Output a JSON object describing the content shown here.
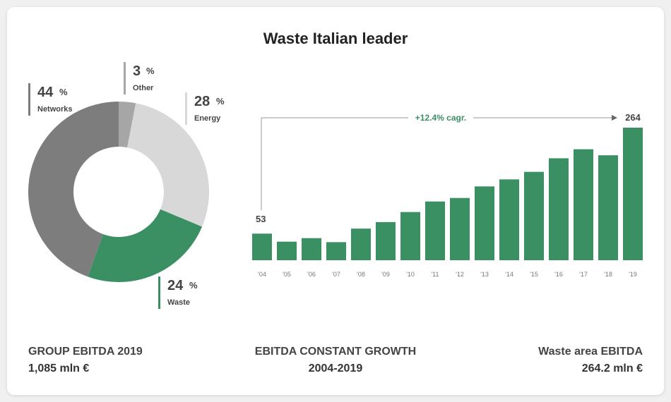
{
  "title": "Waste Italian leader",
  "colors": {
    "waste": "#3a8f63",
    "networks": "#7c7d7c",
    "other": "#a6a6a6",
    "energy": "#d8d8d8",
    "axis_line": "#9a9a9a"
  },
  "chart_data": [
    {
      "type": "pie",
      "variant": "donut",
      "unit": "%",
      "slices": [
        {
          "name": "Other",
          "value": 3
        },
        {
          "name": "Energy",
          "value": 28
        },
        {
          "name": "Waste",
          "value": 24
        },
        {
          "name": "Networks",
          "value": 44
        }
      ]
    },
    {
      "type": "bar",
      "categories": [
        "'04",
        "'05",
        "'06",
        "'07",
        "'08",
        "'09",
        "'10",
        "'11",
        "'12",
        "'13",
        "'14",
        "'15",
        "'16",
        "'17",
        "'18",
        "'19"
      ],
      "values": [
        53,
        37,
        44,
        36,
        63,
        76,
        96,
        117,
        124,
        147,
        161,
        176,
        203,
        221,
        209,
        264
      ],
      "first_label": "53",
      "last_label": "264",
      "annotation": "+12.4% cagr.",
      "ylim": [
        0,
        264
      ]
    }
  ],
  "footer": {
    "left": {
      "line1": "GROUP EBITDA 2019",
      "line2": "1,085 mln €"
    },
    "center": {
      "line1": "EBITDA CONSTANT GROWTH",
      "line2": "2004-2019"
    },
    "right": {
      "line1": "Waste area EBITDA",
      "line2": "264.2 mln €"
    }
  }
}
